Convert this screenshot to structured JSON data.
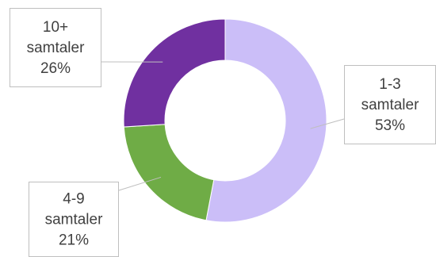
{
  "chart_data": {
    "type": "pie",
    "style": "donut",
    "title": "",
    "legend": "none",
    "series": [
      {
        "values": [
          53,
          21,
          26
        ],
        "categories": [
          "1-3 samtaler",
          "4-9 samtaler",
          "10+ samtaler"
        ],
        "colors": [
          "#cbbef8",
          "#6fac46",
          "#7030a0"
        ]
      }
    ],
    "data_labels": [
      {
        "lines": [
          "1-3",
          "samtaler",
          "53%"
        ]
      },
      {
        "lines": [
          "4-9",
          "samtaler",
          "21%"
        ]
      },
      {
        "lines": [
          "10+",
          "samtaler",
          "26%"
        ]
      }
    ]
  }
}
